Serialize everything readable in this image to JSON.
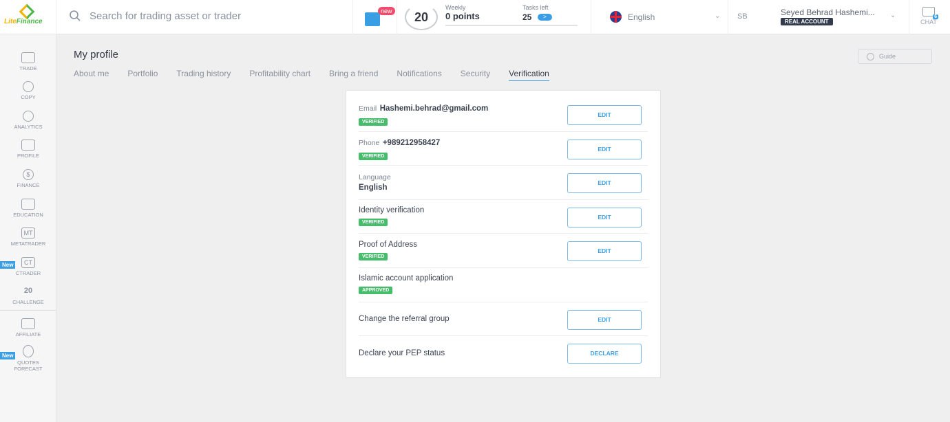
{
  "header": {
    "logo": {
      "part1": "Lite",
      "part2": "Finance"
    },
    "search_placeholder": "Search for trading asset or trader",
    "gift_badge": "new",
    "challenge_number": "20",
    "weekly_label": "Weekly",
    "weekly_points": "0 points",
    "tasks_label": "Tasks left",
    "tasks_count": "25",
    "weekly_progress": 0,
    "language": "English",
    "user_initials": "SB",
    "user_name": "Seyed Behrad Hashemi...",
    "account_type": "REAL ACCOUNT",
    "chat_label": "CHAT",
    "chat_count": "6"
  },
  "sidebar": {
    "items": [
      {
        "label": "TRADE",
        "icon": "chart-icon"
      },
      {
        "label": "COPY",
        "icon": "person-icon"
      },
      {
        "label": "ANALYTICS",
        "icon": "analytics-icon"
      },
      {
        "label": "PROFILE",
        "icon": "id-card-icon"
      },
      {
        "label": "FINANCE",
        "icon": "dollar-icon"
      },
      {
        "label": "EDUCATION",
        "icon": "graduation-cap-icon"
      },
      {
        "label": "METATRADER",
        "glyph": "MT"
      },
      {
        "label": "CTRADER",
        "glyph": "CT",
        "badge": "New"
      },
      {
        "label": "CHALLENGE",
        "glyph": "20"
      },
      {
        "label": "AFFILIATE",
        "icon": "handshake-icon"
      },
      {
        "label": "QUOTES FORECAST",
        "icon": "forecast-icon",
        "badge": "New"
      }
    ]
  },
  "page": {
    "title": "My profile",
    "guide": "Guide",
    "tabs": [
      "About me",
      "Portfolio",
      "Trading history",
      "Profitability chart",
      "Bring a friend",
      "Notifications",
      "Security",
      "Verification"
    ],
    "active_tab": "Verification"
  },
  "rows": [
    {
      "label": "Email",
      "value": "Hashemi.behrad@gmail.com",
      "badge": "VERIFIED",
      "button": "EDIT"
    },
    {
      "label": "Phone",
      "value": "+989212958427",
      "badge": "VERIFIED",
      "button": "EDIT"
    },
    {
      "label": "Language",
      "value": "English",
      "button": "EDIT"
    },
    {
      "label": "Identity verification",
      "badge": "VERIFIED",
      "button": "EDIT"
    },
    {
      "label": "Proof of Address",
      "badge": "VERIFIED",
      "button": "EDIT"
    },
    {
      "label": "Islamic account application",
      "badge": "APPROVED"
    },
    {
      "label": "Change the referral group",
      "button": "EDIT"
    },
    {
      "label": "Declare your PEP status",
      "button": "DECLARE"
    }
  ]
}
